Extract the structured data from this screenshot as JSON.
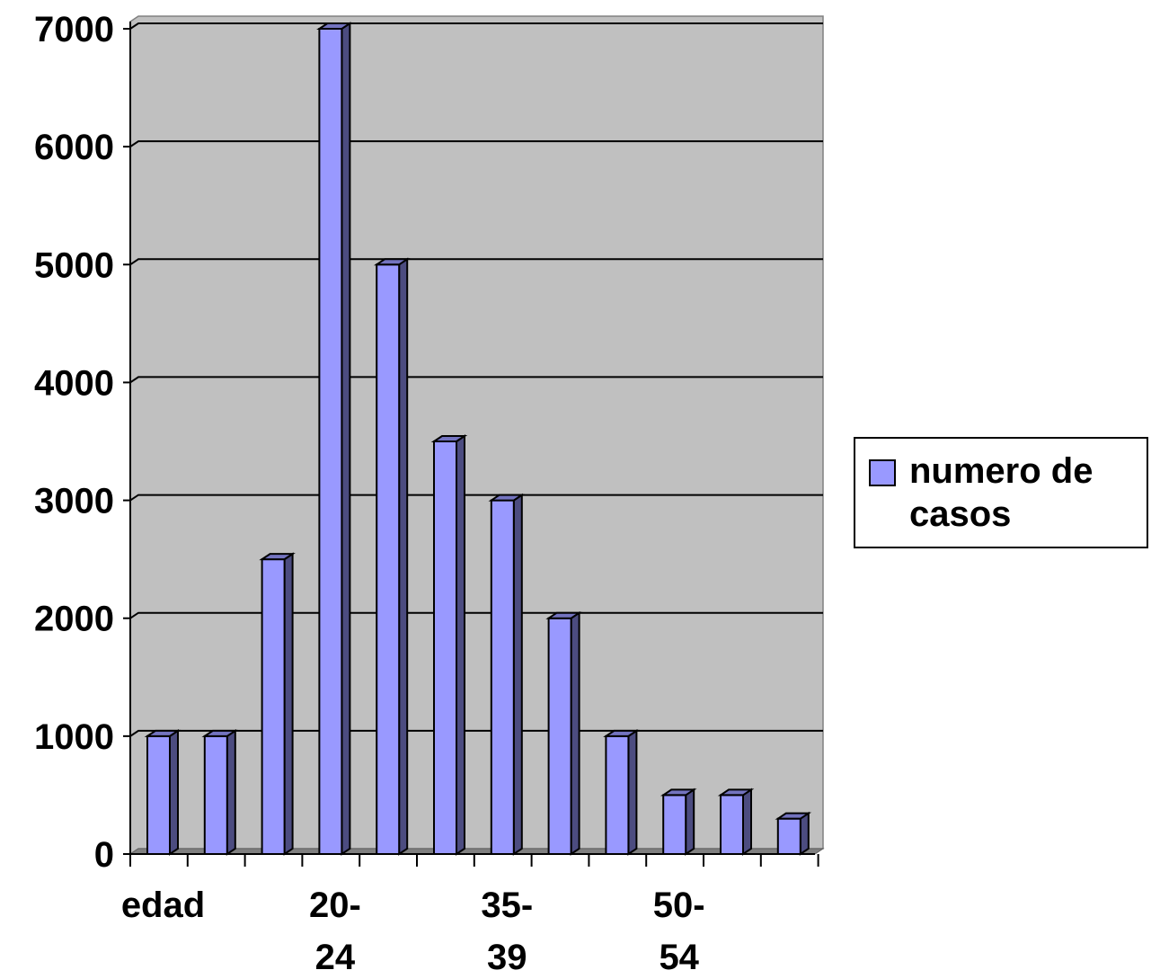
{
  "chart_data": {
    "type": "bar",
    "style": "3d-column",
    "categories": [
      "edad",
      "",
      "",
      "20-24",
      "",
      "",
      "35-39",
      "",
      "",
      "50-54",
      "",
      ""
    ],
    "series": [
      {
        "name": "numero de casos",
        "color": "#9999ff",
        "values": [
          1000,
          1000,
          2500,
          7000,
          5000,
          3500,
          3000,
          2000,
          1000,
          500,
          500,
          300
        ]
      }
    ],
    "y_ticks": [
      "0",
      "1000",
      "2000",
      "3000",
      "4000",
      "5000",
      "6000",
      "7000"
    ],
    "x_tick_labels": [
      {
        "category_index": 0,
        "lines": [
          "edad"
        ]
      },
      {
        "category_index": 3,
        "lines": [
          "20-",
          "24"
        ]
      },
      {
        "category_index": 6,
        "lines": [
          "35-",
          "39"
        ]
      },
      {
        "category_index": 9,
        "lines": [
          "50-",
          "54"
        ]
      }
    ],
    "ylim": [
      0,
      7000
    ],
    "grid": true,
    "plot_background": "#c0c0c0",
    "legend_position": "right"
  },
  "legend": {
    "label": "numero de casos",
    "color": "#9999ff"
  }
}
